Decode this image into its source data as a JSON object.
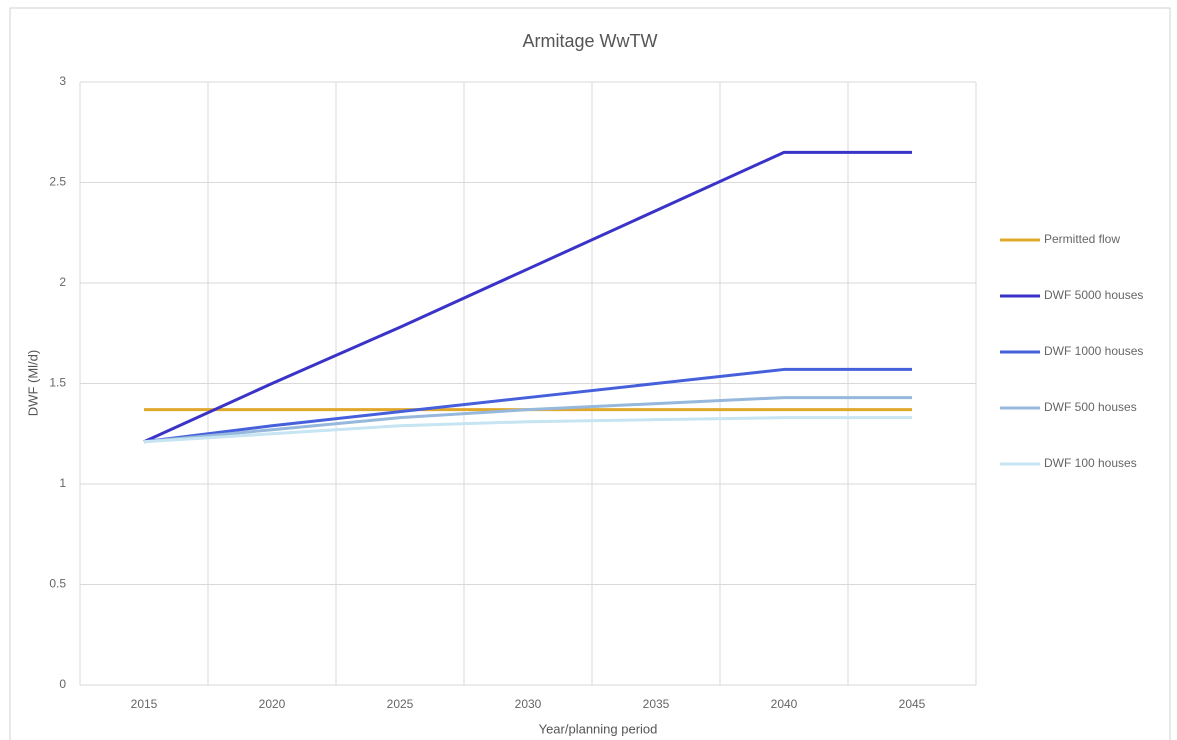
{
  "chart_data": {
    "type": "line",
    "title": "Armitage WwTW",
    "x_label": "Year/planning period",
    "y_label": "DWF (Ml/d)",
    "categories": [
      "2015",
      "2020",
      "2025",
      "2030",
      "2035",
      "2040",
      "2045"
    ],
    "series": [
      {
        "name": "Permitted flow",
        "color": "#e0a82a",
        "values": [
          1.37,
          1.37,
          1.37,
          1.37,
          1.37,
          1.37,
          1.37
        ]
      },
      {
        "name": "DWF 5000 houses",
        "color": "#3a33c8",
        "values": [
          1.21,
          1.5,
          1.78,
          2.07,
          2.36,
          2.65,
          2.65
        ]
      },
      {
        "name": "DWF 1000 houses",
        "color": "#4660dc",
        "values": [
          1.21,
          1.29,
          1.36,
          1.43,
          1.5,
          1.57,
          1.57
        ]
      },
      {
        "name": "DWF 500 houses",
        "color": "#95b8dc",
        "values": [
          1.21,
          1.27,
          1.33,
          1.37,
          1.4,
          1.43,
          1.43
        ]
      },
      {
        "name": "DWF 100 houses",
        "color": "#c6e4f2",
        "values": [
          1.21,
          1.25,
          1.29,
          1.31,
          1.32,
          1.33,
          1.33
        ]
      }
    ],
    "ylim": [
      0,
      3
    ],
    "yticks": [
      0,
      0.5,
      1,
      1.5,
      2,
      2.5,
      3
    ],
    "grid": true,
    "legend": "right"
  }
}
